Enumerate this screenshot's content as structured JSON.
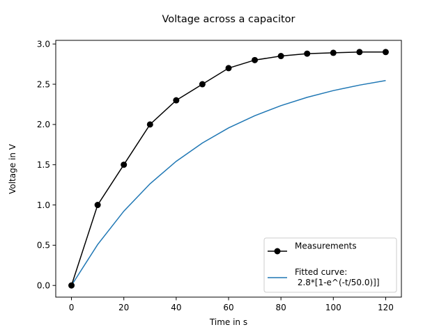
{
  "chart_data": {
    "type": "line",
    "title": "Voltage across a capacitor",
    "xlabel": "Time in s",
    "ylabel": "Voltage in V",
    "xlim": [
      -6,
      126
    ],
    "ylim": [
      -0.145,
      3.045
    ],
    "xticks": [
      0,
      20,
      40,
      60,
      80,
      100,
      120
    ],
    "xtick_labels": [
      "0",
      "20",
      "40",
      "60",
      "80",
      "100",
      "120"
    ],
    "yticks": [
      0.0,
      0.5,
      1.0,
      1.5,
      2.0,
      2.5,
      3.0
    ],
    "ytick_labels": [
      "0.0",
      "0.5",
      "1.0",
      "1.5",
      "2.0",
      "2.5",
      "3.0"
    ],
    "grid": false,
    "legend_position": "lower-right",
    "series": [
      {
        "name": "Measurements",
        "style": "line-with-markers",
        "color": "#000000",
        "x": [
          0,
          10,
          20,
          30,
          40,
          50,
          60,
          70,
          80,
          90,
          100,
          110,
          120
        ],
        "y": [
          0.0,
          1.0,
          1.5,
          2.0,
          2.3,
          2.5,
          2.7,
          2.8,
          2.85,
          2.88,
          2.89,
          2.9,
          2.9
        ]
      },
      {
        "name_lines": [
          "Fitted curve:",
          " 2.8*[1-e^(-t/50.0)]]"
        ],
        "style": "line",
        "color": "#1f77b4",
        "x": [
          0,
          10,
          20,
          30,
          40,
          50,
          60,
          70,
          80,
          90,
          100,
          110,
          120
        ],
        "y": [
          0.0,
          0.508,
          0.923,
          1.263,
          1.542,
          1.77,
          1.957,
          2.109,
          2.234,
          2.337,
          2.421,
          2.489,
          2.546
        ]
      }
    ]
  }
}
